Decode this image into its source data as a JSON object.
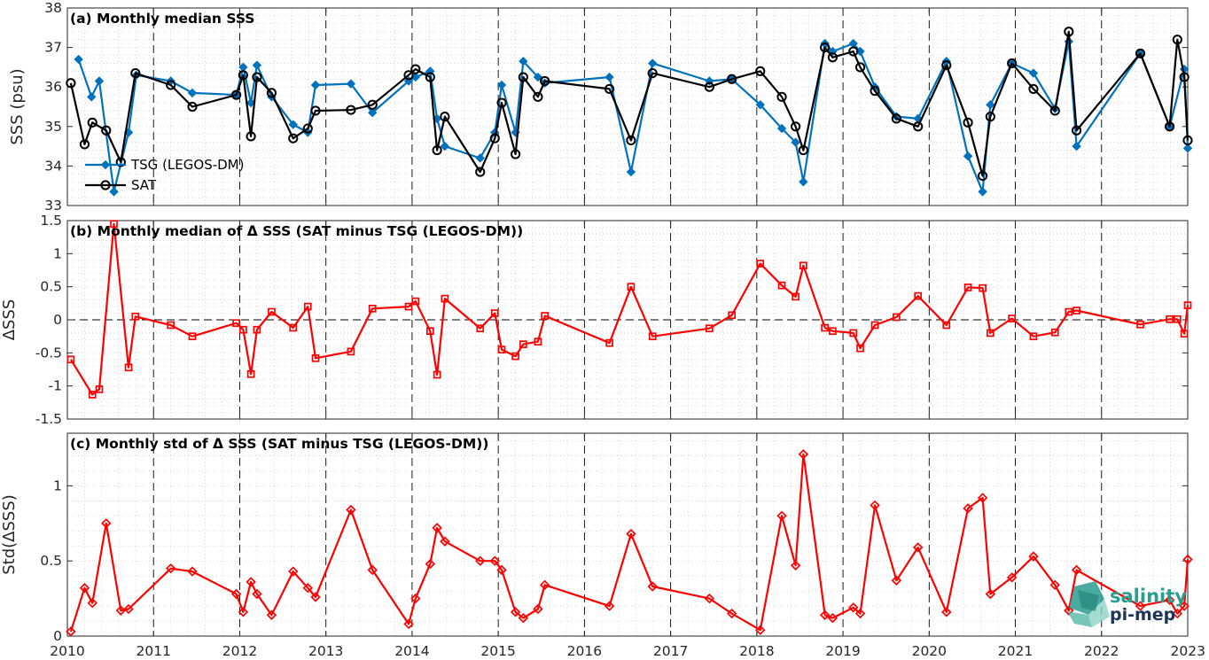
{
  "colors": {
    "tsg": "#0072BD",
    "sat": "#000000",
    "diff": "#FF0000",
    "logo_teal": "#2a9d8f",
    "logo_dark": "#1d3557"
  },
  "logo": {
    "line1": "salinity",
    "line2": "pi-mep"
  },
  "x_ticks": [
    "2010",
    "2011",
    "2012",
    "2013",
    "2014",
    "2015",
    "2016",
    "2017",
    "2018",
    "2019",
    "2020",
    "2021",
    "2022",
    "2023"
  ],
  "chart_data": [
    {
      "type": "line",
      "title": "(a) Monthly median SSS",
      "ylabel": "SSS (psu)",
      "xlim": [
        2010,
        2023
      ],
      "ylim": [
        33,
        38
      ],
      "yticks": [
        "33",
        "34",
        "35",
        "36",
        "37",
        "38"
      ],
      "grid": true,
      "legend_position": "lower-left",
      "series": [
        {
          "name": "TSG (LEGOS-DM)",
          "marker": "diamond",
          "x": [
            2010.13,
            2010.28,
            2010.37,
            2010.54,
            2010.71,
            2010.8,
            2011.2,
            2011.45,
            2011.96,
            2012.04,
            2012.13,
            2012.2,
            2012.37,
            2012.62,
            2012.79,
            2012.88,
            2013.29,
            2013.54,
            2013.96,
            2014.04,
            2014.21,
            2014.29,
            2014.38,
            2014.79,
            2014.96,
            2015.04,
            2015.2,
            2015.29,
            2015.46,
            2015.54,
            2016.29,
            2016.54,
            2016.79,
            2017.45,
            2017.71,
            2018.04,
            2018.29,
            2018.45,
            2018.54,
            2018.79,
            2018.88,
            2019.12,
            2019.2,
            2019.37,
            2019.62,
            2019.87,
            2020.2,
            2020.45,
            2020.62,
            2020.71,
            2020.96,
            2021.21,
            2021.46,
            2021.62,
            2021.71,
            2022.45,
            2022.79,
            2022.96,
            2023.0
          ],
          "values": [
            36.7,
            35.75,
            36.15,
            33.35,
            34.85,
            36.3,
            36.15,
            35.85,
            35.8,
            36.5,
            35.6,
            36.55,
            35.75,
            35.05,
            34.85,
            36.05,
            36.08,
            35.35,
            36.15,
            36.25,
            36.4,
            35.2,
            34.5,
            34.2,
            34.85,
            36.05,
            34.85,
            36.65,
            36.25,
            36.1,
            36.25,
            33.85,
            36.6,
            36.15,
            36.2,
            35.55,
            34.95,
            34.6,
            33.6,
            37.1,
            36.9,
            37.1,
            36.9,
            36.0,
            35.25,
            35.2,
            36.65,
            34.25,
            33.35,
            35.55,
            36.6,
            36.35,
            35.45,
            37.15,
            34.5,
            36.85,
            35.0,
            36.45,
            34.45
          ]
        },
        {
          "name": "SAT",
          "marker": "circle",
          "x": [
            2010.04,
            2010.2,
            2010.29,
            2010.45,
            2010.62,
            2010.79,
            2011.2,
            2011.45,
            2011.96,
            2012.04,
            2012.13,
            2012.2,
            2012.37,
            2012.62,
            2012.79,
            2012.88,
            2013.29,
            2013.54,
            2013.96,
            2014.04,
            2014.21,
            2014.29,
            2014.38,
            2014.79,
            2014.96,
            2015.04,
            2015.2,
            2015.29,
            2015.46,
            2015.54,
            2016.29,
            2016.54,
            2016.79,
            2017.45,
            2017.71,
            2018.04,
            2018.29,
            2018.45,
            2018.54,
            2018.79,
            2018.88,
            2019.12,
            2019.2,
            2019.37,
            2019.62,
            2019.87,
            2020.2,
            2020.45,
            2020.62,
            2020.71,
            2020.96,
            2021.21,
            2021.46,
            2021.62,
            2021.71,
            2022.45,
            2022.79,
            2022.88,
            2022.96,
            2023.0
          ],
          "values": [
            36.1,
            34.55,
            35.1,
            34.9,
            34.1,
            36.35,
            36.05,
            35.5,
            35.8,
            36.3,
            34.75,
            36.25,
            35.85,
            34.7,
            34.95,
            35.4,
            35.42,
            35.55,
            36.3,
            36.45,
            36.25,
            34.4,
            35.25,
            33.85,
            34.7,
            35.6,
            34.3,
            36.25,
            35.75,
            36.15,
            35.95,
            34.65,
            36.35,
            36.0,
            36.2,
            36.4,
            35.75,
            35.0,
            34.4,
            37.0,
            36.75,
            36.9,
            36.5,
            35.9,
            35.2,
            35.0,
            36.55,
            35.1,
            33.75,
            35.25,
            36.6,
            35.95,
            35.4,
            37.4,
            34.9,
            36.85,
            35.0,
            37.2,
            36.25,
            34.65
          ]
        }
      ]
    },
    {
      "type": "line",
      "title": "(b) Monthly median of Δ SSS (SAT minus TSG (LEGOS-DM))",
      "ylabel": "ΔSSS",
      "xlim": [
        2010,
        2023
      ],
      "ylim": [
        -1.5,
        1.5
      ],
      "yticks": [
        "-1.5",
        "-1",
        "-0.5",
        "0",
        "0.5",
        "1",
        "1.5"
      ],
      "grid": true,
      "reference_line": 0,
      "series": [
        {
          "marker": "square",
          "x": [
            2010.04,
            2010.29,
            2010.37,
            2010.54,
            2010.71,
            2010.79,
            2011.2,
            2011.45,
            2011.96,
            2012.04,
            2012.13,
            2012.2,
            2012.37,
            2012.62,
            2012.79,
            2012.88,
            2013.29,
            2013.54,
            2013.96,
            2014.04,
            2014.21,
            2014.29,
            2014.38,
            2014.79,
            2014.96,
            2015.04,
            2015.2,
            2015.29,
            2015.46,
            2015.54,
            2016.29,
            2016.54,
            2016.79,
            2017.45,
            2017.71,
            2018.04,
            2018.29,
            2018.45,
            2018.54,
            2018.79,
            2018.88,
            2019.12,
            2019.2,
            2019.37,
            2019.62,
            2019.87,
            2020.2,
            2020.45,
            2020.62,
            2020.71,
            2020.96,
            2021.21,
            2021.46,
            2021.62,
            2021.71,
            2022.45,
            2022.79,
            2022.88,
            2022.96,
            2023.0
          ],
          "values": [
            -0.6,
            -1.13,
            -1.05,
            1.45,
            -0.72,
            0.05,
            -0.08,
            -0.25,
            -0.05,
            -0.15,
            -0.82,
            -0.15,
            0.12,
            -0.12,
            0.2,
            -0.58,
            -0.48,
            0.17,
            0.2,
            0.28,
            -0.17,
            -0.83,
            0.32,
            -0.13,
            0.1,
            -0.45,
            -0.55,
            -0.37,
            -0.33,
            0.06,
            -0.35,
            0.5,
            -0.25,
            -0.13,
            0.07,
            0.85,
            0.52,
            0.35,
            0.82,
            -0.12,
            -0.17,
            -0.2,
            -0.43,
            -0.08,
            0.04,
            0.36,
            -0.08,
            0.49,
            0.48,
            -0.2,
            0.02,
            -0.25,
            -0.19,
            0.12,
            0.14,
            -0.07,
            0.01,
            0.01,
            -0.21,
            0.22
          ]
        }
      ]
    },
    {
      "type": "line",
      "title": "(c) Monthly std of Δ SSS (SAT minus TSG (LEGOS-DM))",
      "ylabel": "Std(ΔSSS)",
      "xlim": [
        2010,
        2023
      ],
      "ylim": [
        0,
        1.35
      ],
      "yticks": [
        "0",
        "0.5",
        "1"
      ],
      "grid": true,
      "series": [
        {
          "marker": "diamond",
          "x": [
            2010.04,
            2010.2,
            2010.29,
            2010.45,
            2010.62,
            2010.71,
            2011.2,
            2011.45,
            2011.96,
            2012.04,
            2012.13,
            2012.2,
            2012.37,
            2012.62,
            2012.79,
            2012.88,
            2013.29,
            2013.54,
            2013.96,
            2014.04,
            2014.21,
            2014.29,
            2014.38,
            2014.79,
            2014.96,
            2015.04,
            2015.2,
            2015.29,
            2015.46,
            2015.54,
            2016.29,
            2016.54,
            2016.79,
            2017.45,
            2017.71,
            2018.04,
            2018.29,
            2018.45,
            2018.54,
            2018.79,
            2018.88,
            2019.12,
            2019.2,
            2019.37,
            2019.62,
            2019.87,
            2020.2,
            2020.45,
            2020.62,
            2020.71,
            2020.96,
            2021.21,
            2021.46,
            2021.62,
            2021.71,
            2022.45,
            2022.79,
            2022.88,
            2022.96,
            2023.0
          ],
          "values": [
            0.03,
            0.32,
            0.22,
            0.75,
            0.17,
            0.18,
            0.45,
            0.43,
            0.28,
            0.16,
            0.36,
            0.28,
            0.14,
            0.43,
            0.32,
            0.26,
            0.84,
            0.44,
            0.08,
            0.25,
            0.48,
            0.72,
            0.63,
            0.5,
            0.5,
            0.44,
            0.16,
            0.12,
            0.18,
            0.34,
            0.2,
            0.68,
            0.33,
            0.25,
            0.15,
            0.04,
            0.8,
            0.47,
            1.21,
            0.14,
            0.12,
            0.19,
            0.15,
            0.87,
            0.37,
            0.59,
            0.16,
            0.85,
            0.92,
            0.28,
            0.39,
            0.53,
            0.34,
            0.17,
            0.44,
            0.2,
            0.24,
            0.15,
            0.2,
            0.51
          ]
        }
      ]
    }
  ]
}
